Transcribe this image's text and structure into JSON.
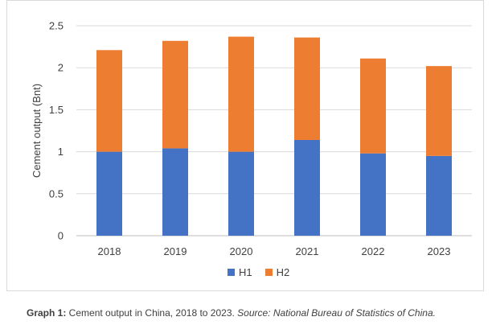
{
  "chart_data": {
    "type": "bar",
    "stacked": true,
    "categories": [
      "2018",
      "2019",
      "2020",
      "2021",
      "2022",
      "2023"
    ],
    "series": [
      {
        "name": "H1",
        "color": "#4472c4",
        "values": [
          1.0,
          1.04,
          1.0,
          1.14,
          0.98,
          0.95
        ]
      },
      {
        "name": "H2",
        "color": "#ed7d31",
        "values": [
          1.21,
          1.28,
          1.37,
          1.22,
          1.13,
          1.07
        ]
      }
    ],
    "ylabel": "Cement output (Bnt)",
    "ylim": [
      0,
      2.5
    ],
    "yticks": [
      "0",
      "0.5",
      "1",
      "1.5",
      "2",
      "2.5"
    ],
    "grid": true,
    "legend_position": "bottom"
  },
  "caption": {
    "label": "Graph 1:",
    "text": " Cement output in China, 2018 to 2023. ",
    "source": "Source: National Bureau of Statistics of China."
  }
}
